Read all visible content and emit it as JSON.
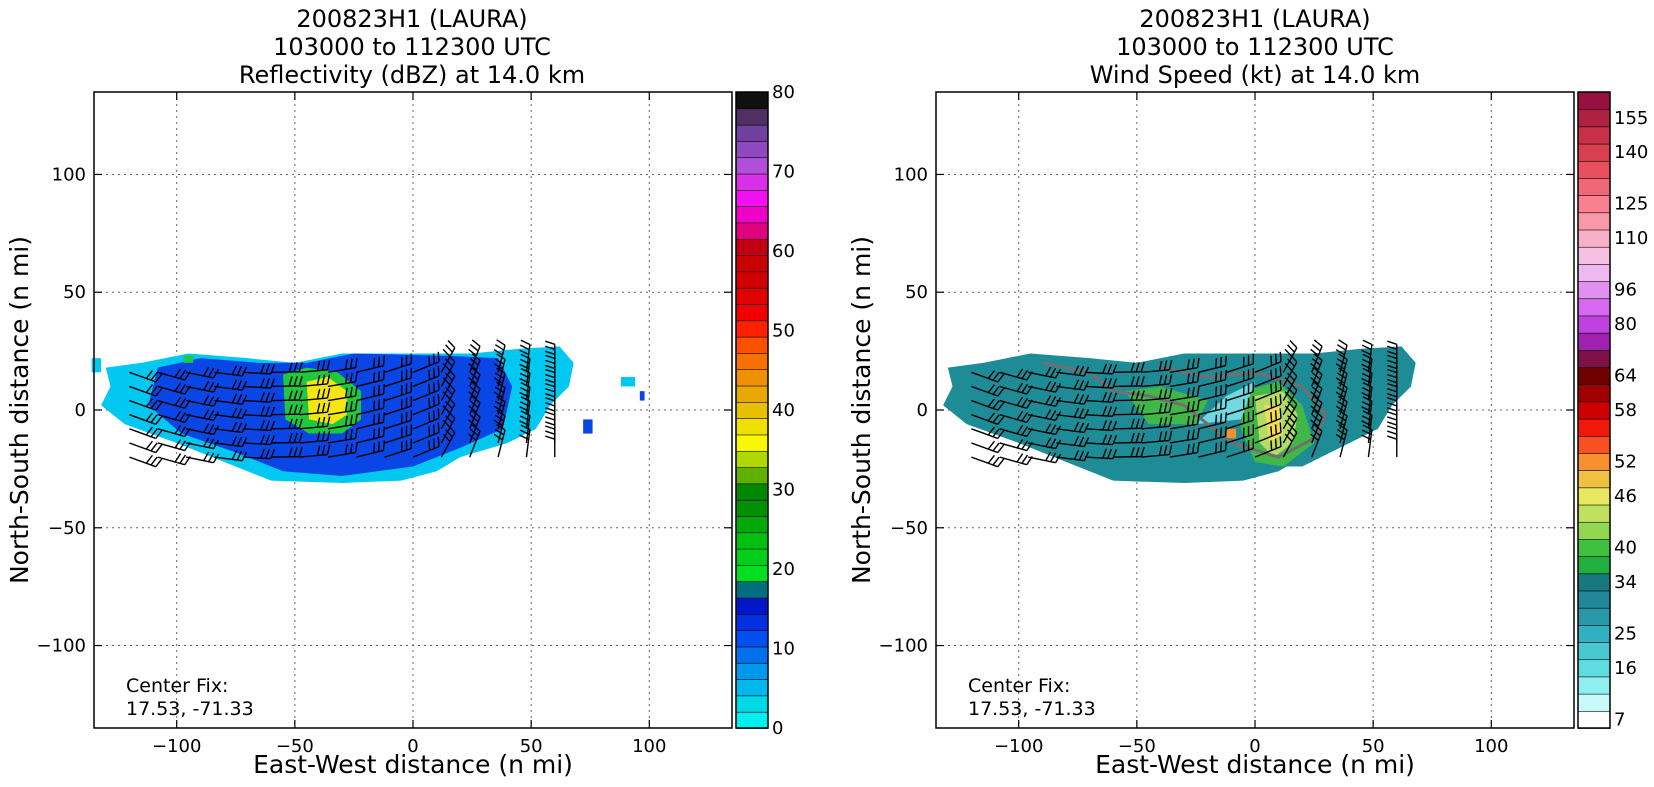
{
  "chart_data": [
    {
      "type": "heatmap",
      "title": [
        "200823H1 (LAURA)",
        "103000 to 112300 UTC",
        "Reflectivity (dBZ) at 14.0 km"
      ],
      "xlabel": "East-West distance (n mi)",
      "ylabel": "North-South distance (n mi)",
      "xlim": [
        -135,
        135
      ],
      "ylim": [
        -135,
        135
      ],
      "xticks": [
        -100,
        -50,
        0,
        50,
        100
      ],
      "yticks": [
        -100,
        -50,
        0,
        50,
        100
      ],
      "xtick_labels": [
        "−100",
        "−50",
        "0",
        "50",
        "100"
      ],
      "ytick_labels": [
        "−100",
        "−50",
        "0",
        "50",
        "100"
      ],
      "grid": true,
      "annotation": [
        "Center Fix:",
        "17.53, -71.33"
      ],
      "colorbar": {
        "min": 0,
        "max": 80,
        "ticks": [
          0,
          10,
          20,
          30,
          40,
          50,
          60,
          70,
          80
        ],
        "tick_labels": [
          "0",
          "10",
          "20",
          "30",
          "40",
          "50",
          "60",
          "70",
          "80"
        ],
        "colors": [
          "#00f0f0",
          "#00d8e8",
          "#00b8ec",
          "#0098ec",
          "#0070f0",
          "#0050f0",
          "#0030e0",
          "#0018c8",
          "#007080",
          "#00e020",
          "#00d018",
          "#00c010",
          "#00a808",
          "#009000",
          "#008800",
          "#60b000",
          "#b0d800",
          "#f8f800",
          "#f0e000",
          "#e8c000",
          "#e8a800",
          "#f09000",
          "#f87000",
          "#ff5000",
          "#ff2000",
          "#f00000",
          "#e00000",
          "#d00000",
          "#c80000",
          "#c00010",
          "#e00080",
          "#f000c8",
          "#f010f0",
          "#d830e8",
          "#b050d8",
          "#9048c0",
          "#7040a0",
          "#503060",
          "#101010"
        ]
      },
      "palette": {
        "low": "#00c8f0",
        "mid": "#0a46e6",
        "core": "#1fc83c",
        "peak": "#f4e614"
      }
    },
    {
      "type": "heatmap",
      "title": [
        "200823H1 (LAURA)",
        "103000 to 112300 UTC",
        "Wind Speed (kt) at 14.0 km"
      ],
      "xlabel": "East-West distance (n mi)",
      "ylabel": "North-South distance (n mi)",
      "xlim": [
        -135,
        135
      ],
      "ylim": [
        -135,
        135
      ],
      "xticks": [
        -100,
        -50,
        0,
        50,
        100
      ],
      "yticks": [
        -100,
        -50,
        0,
        50,
        100
      ],
      "xtick_labels": [
        "−100",
        "−50",
        "0",
        "50",
        "100"
      ],
      "ytick_labels": [
        "−100",
        "−50",
        "0",
        "50",
        "100"
      ],
      "grid": true,
      "annotation": [
        "Center Fix:",
        "17.53, -71.33"
      ],
      "colorbar": {
        "ticks": [
          "7",
          "16",
          "25",
          "34",
          "40",
          "46",
          "52",
          "58",
          "64",
          "80",
          "96",
          "110",
          "125",
          "140",
          "155"
        ],
        "colors": [
          "#ffffff",
          "#c8fafa",
          "#90f0f0",
          "#60dce0",
          "#48c8d0",
          "#30b0c0",
          "#2898a8",
          "#208898",
          "#187880",
          "#20b040",
          "#40c040",
          "#90d850",
          "#c0e060",
          "#e8e860",
          "#f0c040",
          "#f89030",
          "#f85020",
          "#f01808",
          "#d00000",
          "#a00000",
          "#700000",
          "#801048",
          "#a020b0",
          "#c040e0",
          "#d868f0",
          "#e090f0",
          "#f0b8f0",
          "#f8c0e0",
          "#f8b0c8",
          "#f898a8",
          "#f88090",
          "#f06878",
          "#e85060",
          "#d84050",
          "#c83048",
          "#b02040",
          "#981040"
        ]
      },
      "palette": {
        "low": "#1e8c96",
        "mid": "#40b848",
        "core": "#b4dc64",
        "peak": "#f0dc5a",
        "contour": "#707070"
      }
    }
  ]
}
